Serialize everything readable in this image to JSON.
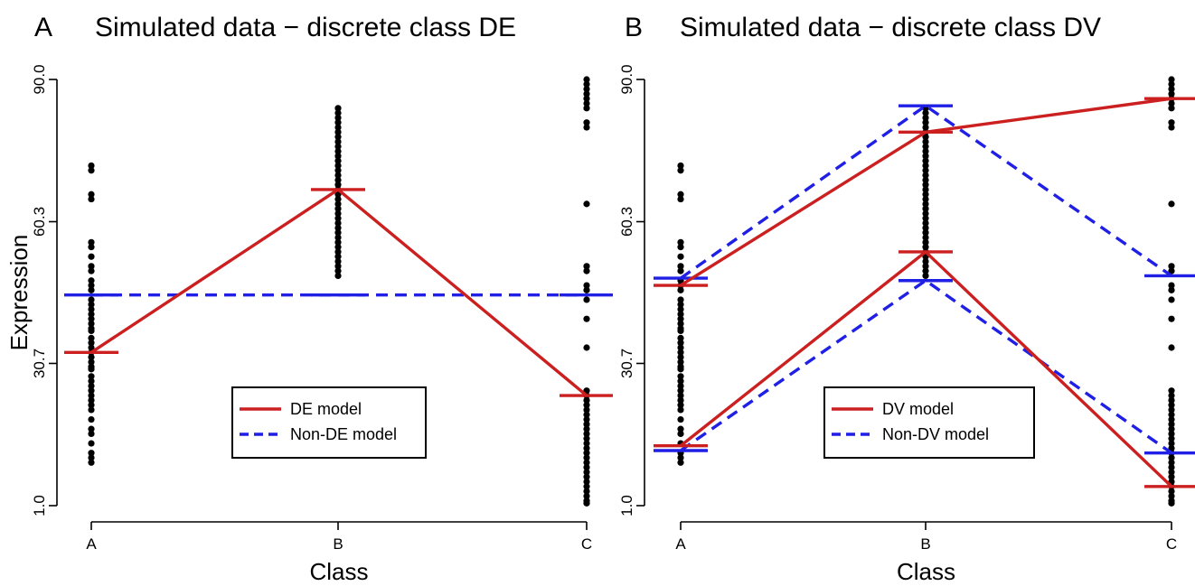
{
  "chart_data": [
    {
      "type": "scatter",
      "panel_letter": "A",
      "title": "Simulated data − discrete class DE",
      "xlabel": "Class",
      "ylabel": "Expression",
      "categories": [
        "A",
        "B",
        "C"
      ],
      "yticks": [
        1.0,
        30.7,
        60.3,
        90.0
      ],
      "ytick_labels": [
        "1.0",
        "30.7",
        "60.3",
        "90.0"
      ],
      "ylim": [
        1.0,
        90.0
      ],
      "points": {
        "A": [
          72,
          71,
          66,
          65,
          56,
          55,
          53,
          51,
          50,
          48,
          47,
          46,
          44,
          43,
          42,
          41,
          40,
          39,
          38,
          37.5,
          36,
          35,
          34,
          33,
          32,
          31,
          30,
          29.5,
          28,
          27,
          26,
          25,
          24,
          23,
          22,
          21,
          19,
          17,
          16,
          14,
          12,
          11,
          10
        ],
        "B": [
          84,
          83,
          82,
          81,
          80,
          79,
          78,
          77,
          76,
          75,
          74,
          73,
          72,
          71,
          70,
          69,
          68,
          67,
          66,
          65,
          64,
          63,
          62,
          61,
          60,
          59,
          58,
          57,
          56,
          55,
          54,
          53,
          52,
          51,
          50,
          49
        ],
        "C": [
          90,
          89,
          88,
          87,
          86,
          85,
          84,
          81,
          80,
          64,
          51,
          50,
          47,
          46,
          44,
          40,
          34,
          25,
          24,
          23,
          22,
          21,
          20,
          19,
          18,
          17,
          16,
          15,
          14,
          13,
          12,
          11,
          10,
          9,
          8,
          7,
          6,
          5,
          4,
          3,
          2,
          1.5
        ]
      },
      "series": [
        {
          "name": "DE model",
          "style": "solid",
          "color": "#cc1f1f",
          "groups": [
            [
              33,
              67,
              24
            ]
          ]
        },
        {
          "name": "Non-DE model",
          "style": "dashed",
          "color": "#1f1fe6",
          "groups": [
            [
              45,
              45,
              45
            ]
          ]
        }
      ],
      "legend_position": "center-bottom"
    },
    {
      "type": "scatter",
      "panel_letter": "B",
      "title": "Simulated data − discrete class DV",
      "xlabel": "Class",
      "ylabel": "",
      "categories": [
        "A",
        "B",
        "C"
      ],
      "yticks": [
        1.0,
        30.7,
        60.3,
        90.0
      ],
      "ytick_labels": [
        "1.0",
        "30.7",
        "60.3",
        "90.0"
      ],
      "ylim": [
        1.0,
        90.0
      ],
      "points": {
        "A": [
          72,
          71,
          66,
          65,
          56,
          55,
          53,
          51,
          50,
          48,
          47,
          46,
          44,
          43,
          42,
          41,
          40,
          39,
          38,
          37.5,
          36,
          35,
          34,
          33,
          32,
          31,
          30,
          29.5,
          28,
          27,
          26,
          25,
          24,
          23,
          22,
          21,
          19,
          17,
          16,
          14,
          12,
          11,
          10
        ],
        "B": [
          84,
          83,
          82,
          81,
          80,
          79,
          78,
          77,
          76,
          75,
          74,
          73,
          72,
          71,
          70,
          69,
          68,
          67,
          66,
          65,
          64,
          63,
          62,
          61,
          60,
          59,
          58,
          57,
          56,
          55,
          54,
          53,
          52,
          51,
          50,
          49
        ],
        "C": [
          90,
          89,
          88,
          87,
          86,
          85,
          84,
          81,
          80,
          64,
          51,
          50,
          47,
          46,
          44,
          40,
          34,
          25,
          24,
          23,
          22,
          21,
          20,
          19,
          18,
          17,
          16,
          15,
          14,
          13,
          12,
          11,
          10,
          9,
          8,
          7,
          6,
          5,
          4,
          3,
          2,
          1.5
        ]
      },
      "series": [
        {
          "name": "DV model",
          "style": "solid",
          "color": "#cc1f1f",
          "groups": [
            [
              47,
              79,
              86
            ],
            [
              13.5,
              54,
              5
            ]
          ]
        },
        {
          "name": "Non-DV model",
          "style": "dashed",
          "color": "#1f1fe6",
          "groups": [
            [
              48.5,
              84.5,
              49
            ],
            [
              12.5,
              48,
              12
            ]
          ]
        }
      ],
      "legend_position": "center-bottom"
    }
  ]
}
